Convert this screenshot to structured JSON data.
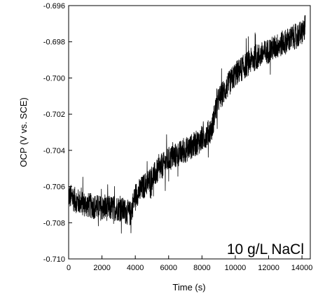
{
  "chart_data": {
    "type": "line",
    "title": "",
    "xlabel": "Time (s)",
    "ylabel": "OCP (V vs. SCE)",
    "xlim": [
      0,
      14500
    ],
    "ylim": [
      -0.71,
      -0.696
    ],
    "xticks": [
      0,
      2000,
      4000,
      6000,
      8000,
      10000,
      12000,
      14000
    ],
    "xtick_labels": [
      "0",
      "2000",
      "4000",
      "6000",
      "8000",
      "10000",
      "12000",
      "14000"
    ],
    "yticks": [
      -0.696,
      -0.698,
      -0.7,
      -0.702,
      -0.704,
      -0.706,
      -0.708,
      -0.71
    ],
    "ytick_labels": [
      "-0.696",
      "-0.698",
      "-0.700",
      "-0.702",
      "-0.704",
      "-0.706",
      "-0.708",
      "-0.710"
    ],
    "grid": false,
    "legend": "none",
    "annotation": "10 g/L NaCl",
    "series": [
      {
        "color": "#000000",
        "noise_amplitude": 0.0007,
        "trend": [
          [
            0,
            -0.7065
          ],
          [
            500,
            -0.7068
          ],
          [
            1000,
            -0.707
          ],
          [
            2000,
            -0.7072
          ],
          [
            3000,
            -0.7072
          ],
          [
            3700,
            -0.7075
          ],
          [
            4000,
            -0.7065
          ],
          [
            5000,
            -0.7055
          ],
          [
            6000,
            -0.7045
          ],
          [
            7000,
            -0.704
          ],
          [
            8000,
            -0.7034
          ],
          [
            8600,
            -0.7028
          ],
          [
            8800,
            -0.7018
          ],
          [
            9000,
            -0.7012
          ],
          [
            9500,
            -0.7005
          ],
          [
            10000,
            -0.6998
          ],
          [
            11000,
            -0.699
          ],
          [
            12000,
            -0.6985
          ],
          [
            13000,
            -0.698
          ],
          [
            14000,
            -0.6975
          ],
          [
            14200,
            -0.6972
          ]
        ]
      }
    ]
  }
}
